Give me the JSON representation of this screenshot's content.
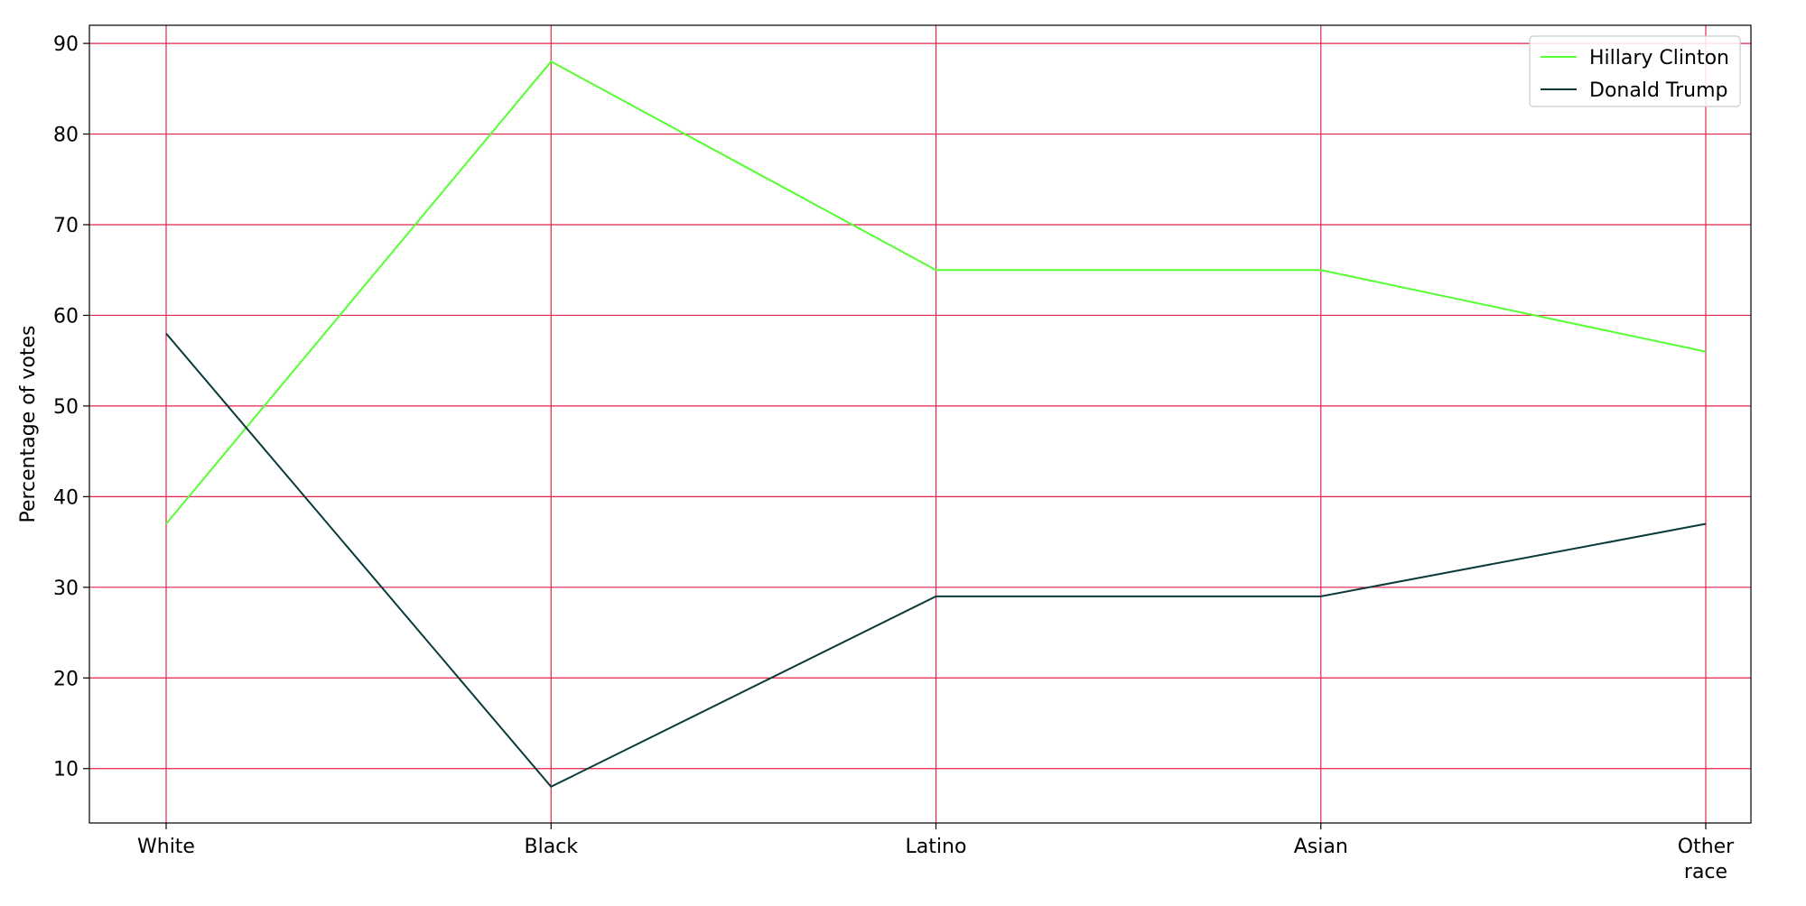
{
  "chart_data": {
    "type": "line",
    "title": "",
    "xlabel": "",
    "ylabel": "Percentage of votes",
    "categories": [
      "White",
      "Black",
      "Latino",
      "Asian",
      "Other\nrace"
    ],
    "series": [
      {
        "name": "Hillary Clinton",
        "values": [
          37,
          88,
          65,
          65,
          56
        ],
        "color": "#55ff33"
      },
      {
        "name": "Donald Trump",
        "values": [
          58,
          8,
          29,
          29,
          37
        ],
        "color": "#0a3a3a"
      }
    ],
    "ylim": [
      4,
      92
    ],
    "yticks": [
      10,
      20,
      30,
      40,
      50,
      60,
      70,
      80,
      90
    ],
    "grid": true,
    "grid_color": "#e8234a",
    "legend_position": "top-right"
  }
}
